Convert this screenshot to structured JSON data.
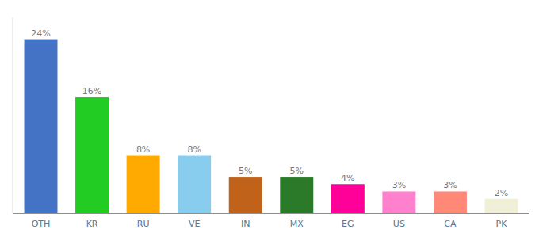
{
  "chart_data": {
    "type": "bar",
    "categories": [
      "OTH",
      "KR",
      "RU",
      "VE",
      "IN",
      "MX",
      "EG",
      "US",
      "CA",
      "PK"
    ],
    "values": [
      24,
      16,
      8,
      8,
      5,
      5,
      4,
      3,
      3,
      2
    ],
    "value_labels": [
      "24%",
      "16%",
      "8%",
      "8%",
      "5%",
      "5%",
      "4%",
      "3%",
      "3%",
      "2%"
    ],
    "colors": [
      "#4472c4",
      "#22cc22",
      "#ffaa00",
      "#88ccee",
      "#c0621a",
      "#2a7a2a",
      "#ff0099",
      "#ff80cc",
      "#ff8877",
      "#f0f0d8"
    ],
    "ylim": [
      0,
      27
    ],
    "data_labels": true,
    "tick_labels": "x",
    "grid": false
  }
}
